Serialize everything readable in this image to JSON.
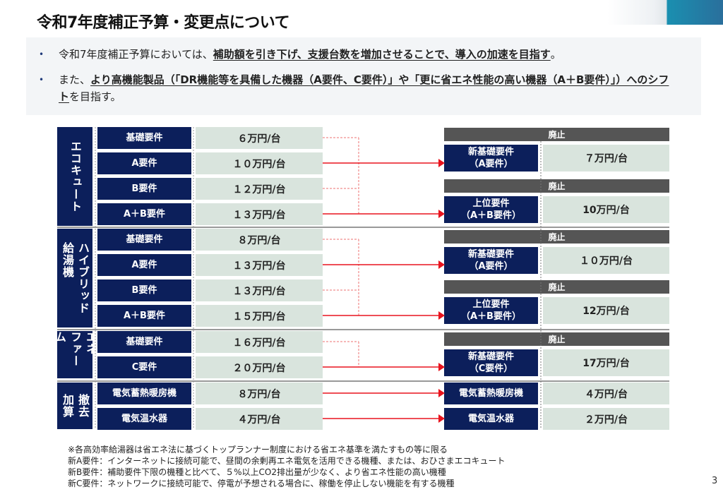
{
  "title": "令和7年度補正予算・変更点について",
  "bullets": [
    {
      "prefix": "令和7年度補正予算においては、",
      "emphasis": "補助額を引き下げ、支援台数を増加させることで、導入の加速を目指す",
      "suffix": "。"
    },
    {
      "prefix": "また、",
      "emphasis": "より高機能製品（「DR機能等を具備した機器（A要件、C要件）」や「更に省エネ性能の高い機器（A＋B要件）」）へのシフト",
      "suffix": "を目指す。"
    }
  ],
  "abolished_label": "廃止",
  "groups": [
    {
      "label": "エコキュート",
      "rows": [
        {
          "req": "基礎要件",
          "amount": "６万円/台"
        },
        {
          "req": "A要件",
          "amount": "１０万円/台"
        },
        {
          "req": "B要件",
          "amount": "１２万円/台"
        },
        {
          "req": "A＋B要件",
          "amount": "１３万円/台"
        }
      ],
      "new": [
        {
          "abolished": true,
          "req": "新基礎要件\n（A要件）",
          "amount": "７万円/台"
        },
        {
          "abolished": true,
          "req": "上位要件\n（A＋B要件）",
          "amount": "10万円/台"
        }
      ]
    },
    {
      "label": "ハイブリッド\n給湯機",
      "rows": [
        {
          "req": "基礎要件",
          "amount": "８万円/台"
        },
        {
          "req": "A要件",
          "amount": "１３万円/台"
        },
        {
          "req": "B要件",
          "amount": "１３万円/台"
        },
        {
          "req": "A＋B要件",
          "amount": "１５万円/台"
        }
      ],
      "new": [
        {
          "abolished": true,
          "req": "新基礎要件\n（A要件）",
          "amount": "１０万円/台"
        },
        {
          "abolished": true,
          "req": "上位要件\n（A＋B要件）",
          "amount": "12万円/台"
        }
      ]
    },
    {
      "label": "エネ\nファーム",
      "rows": [
        {
          "req": "基礎要件",
          "amount": "１６万円/台"
        },
        {
          "req": "C要件",
          "amount": "２０万円/台"
        }
      ],
      "new": [
        {
          "abolished": true,
          "req": "新基礎要件\n（C要件）",
          "amount": "17万円/台"
        }
      ]
    },
    {
      "label": "撤去\n加算",
      "rows": [
        {
          "req": "電気蓄熱暖房機",
          "amount": "８万円/台"
        },
        {
          "req": "電気温水器",
          "amount": "４万円/台"
        }
      ],
      "new": [
        {
          "abolished": false,
          "req": "電気蓄熱暖房機",
          "amount": "４万円/台"
        },
        {
          "abolished": false,
          "req": "電気温水器",
          "amount": "２万円/台"
        }
      ]
    }
  ],
  "footnotes": [
    "※各高効率給湯器は省エネ法に基づくトップランナー制度における省エネ基準を満たすもの等に限る",
    "新A要件：インターネットに接続可能で、昼間の余剰再エネ電気を活用できる機種、または、おひさまエコキュート",
    "新B要件：補助要件下限の機種と比べて、５%以上CO2排出量が少なく、より省エネ性能の高い機種",
    "新C要件：ネットワークに接続可能で、停電が予想される場合に、稼働を停止しない機能を有する機種"
  ],
  "page_number": "3",
  "colors": {
    "navy": "#0c1f5b",
    "value_bg": "#d9e4dd",
    "abolished_bg": "#555555",
    "arrow": "#e8141e",
    "info_bg": "#f3f5f7"
  }
}
